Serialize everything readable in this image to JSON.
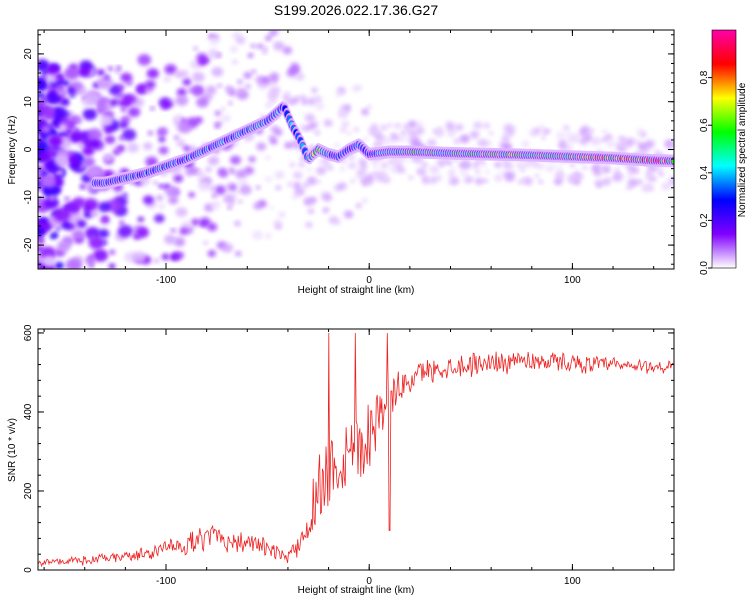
{
  "figure_title": "S199.2026.022.17.36.G27",
  "chart_data": [
    {
      "type": "heatmap",
      "title": "S199.2026.022.17.36.G27",
      "xlabel": "Height of straight line (km)",
      "ylabel": "Frequency (Hz)",
      "xlim": [
        -163,
        150
      ],
      "ylim": [
        -25,
        25
      ],
      "x_ticks": [
        -100,
        0,
        100
      ],
      "y_ticks": [
        -20,
        -10,
        0,
        10,
        20
      ],
      "colorbar": {
        "label": "Normalized spectral amplitude",
        "range": [
          0,
          1
        ],
        "ticks": [
          "0.0",
          "0.2",
          "0.4",
          "0.6",
          "0.8"
        ],
        "colors": [
          "#ffffff",
          "#8000ff",
          "#0000ff",
          "#00ffff",
          "#00ff00",
          "#ffff00",
          "#ff0000",
          "#ff00aa"
        ]
      },
      "ridge": {
        "x": [
          -130,
          -110,
          -100,
          -90,
          -80,
          -70,
          -60,
          -50,
          -42,
          -38,
          -34,
          -30,
          -25,
          -20,
          -15,
          -10,
          -5,
          0,
          10,
          20,
          40,
          60,
          80,
          100,
          120,
          140,
          150
        ],
        "y": [
          -7,
          -5,
          -3.5,
          -2,
          0,
          2,
          4,
          6,
          9,
          5,
          2,
          -2,
          0,
          -1,
          -1.5,
          0,
          1,
          -1,
          -0.5,
          -0.5,
          -0.8,
          -1,
          -1.2,
          -1.5,
          -1.8,
          -2.3,
          -2.4
        ],
        "amplitude": [
          0.35,
          0.4,
          0.4,
          0.35,
          0.4,
          0.35,
          0.4,
          0.45,
          0.35,
          0.35,
          0.3,
          0.45,
          0.7,
          0.4,
          0.35,
          0.3,
          0.35,
          0.3,
          0.5,
          0.55,
          0.55,
          0.6,
          0.6,
          0.65,
          0.7,
          0.8,
          0.75
        ]
      }
    },
    {
      "type": "line",
      "xlabel": "Height of straight line (km)",
      "ylabel": "SNR (10 * v/v)",
      "xlim": [
        -163,
        150
      ],
      "ylim": [
        0,
        610
      ],
      "x_ticks": [
        -100,
        0,
        100
      ],
      "y_ticks": [
        0,
        200,
        400,
        600
      ],
      "color": "#ee2222",
      "series": [
        {
          "name": "SNR",
          "x": [
            -163,
            -150,
            -140,
            -130,
            -120,
            -110,
            -100,
            -90,
            -80,
            -75,
            -70,
            -60,
            -50,
            -45,
            -40,
            -35,
            -30,
            -25,
            -22,
            -20,
            -15,
            -10,
            -5,
            0,
            5,
            10,
            15,
            20,
            25,
            30,
            40,
            50,
            60,
            70,
            80,
            90,
            100,
            110,
            120,
            130,
            140,
            150
          ],
          "y": [
            20,
            22,
            25,
            28,
            35,
            40,
            55,
            65,
            80,
            95,
            75,
            70,
            55,
            40,
            35,
            60,
            120,
            200,
            240,
            260,
            280,
            300,
            320,
            350,
            400,
            430,
            460,
            480,
            500,
            505,
            515,
            520,
            525,
            530,
            530,
            528,
            525,
            520,
            518,
            515,
            515,
            512
          ],
          "noise": [
            8,
            8,
            10,
            10,
            12,
            15,
            18,
            22,
            25,
            30,
            25,
            22,
            18,
            15,
            14,
            25,
            55,
            80,
            90,
            95,
            100,
            95,
            90,
            80,
            60,
            45,
            35,
            30,
            25,
            25,
            25,
            25,
            25,
            25,
            22,
            20,
            20,
            18,
            18,
            16,
            15,
            15
          ]
        }
      ],
      "spikes": [
        {
          "x": -20,
          "y": 600
        },
        {
          "x": -7,
          "y": 600
        },
        {
          "x": 9,
          "y": 600
        },
        {
          "x": 10,
          "y": 100
        }
      ]
    }
  ]
}
